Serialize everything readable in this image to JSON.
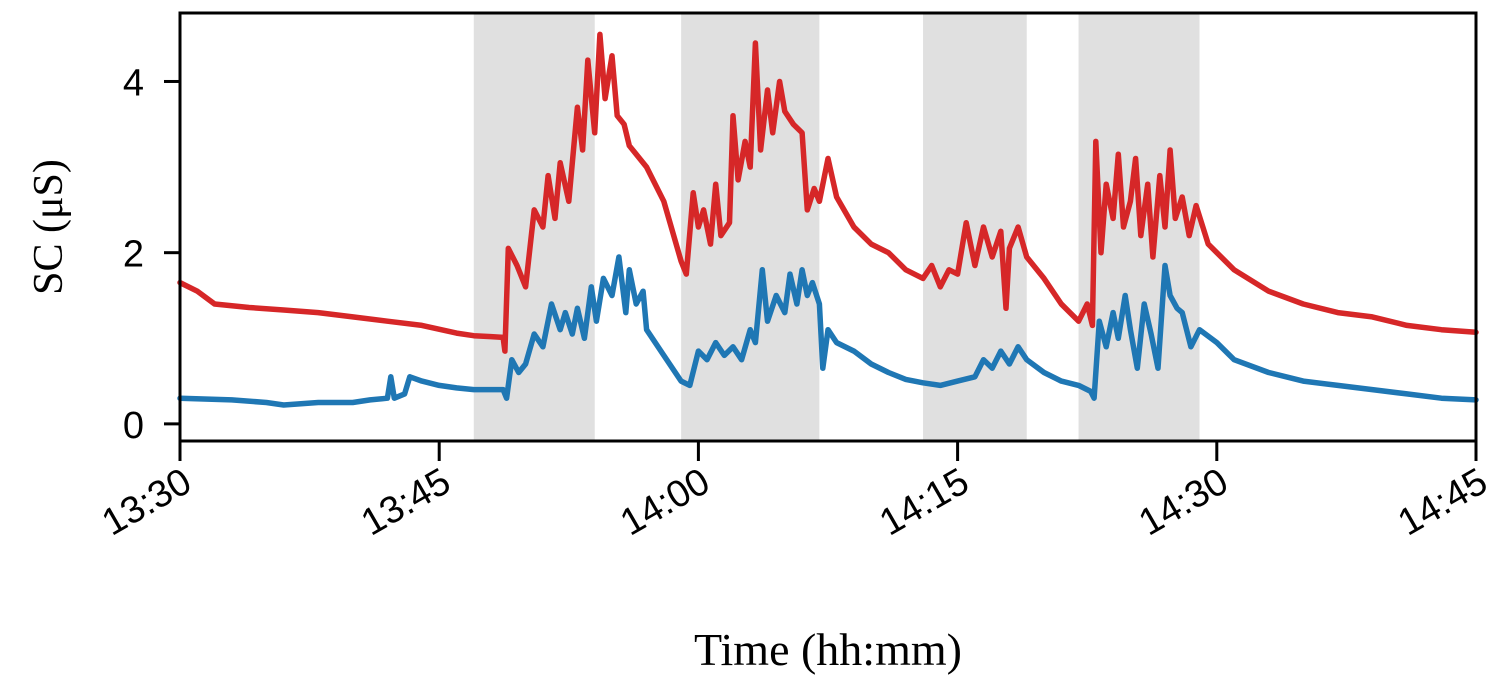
{
  "chart_data": {
    "type": "line",
    "xlabel": "Time (hh:mm)",
    "ylabel": "SC (μS)",
    "x_unit": "time of day (hh:mm)",
    "xlim": [
      "13:30",
      "14:45"
    ],
    "ylim": [
      -0.2,
      4.8
    ],
    "x_ticks": [
      "13:30",
      "13:45",
      "14:00",
      "14:15",
      "14:30",
      "14:45"
    ],
    "y_ticks": [
      0,
      2,
      4
    ],
    "grid": false,
    "legend": "none",
    "shaded_intervals": [
      {
        "start": "13:47",
        "end": "13:54"
      },
      {
        "start": "13:59",
        "end": "14:07"
      },
      {
        "start": "14:13",
        "end": "14:19"
      },
      {
        "start": "14:22",
        "end": "14:29"
      }
    ],
    "shade_color": "#e0e0e0",
    "series": [
      {
        "color": "#d62728",
        "points": [
          [
            "13:30",
            1.65
          ],
          [
            "13:31",
            1.55
          ],
          [
            "13:32",
            1.4
          ],
          [
            "13:34",
            1.36
          ],
          [
            "13:36",
            1.33
          ],
          [
            "13:38",
            1.3
          ],
          [
            "13:40",
            1.25
          ],
          [
            "13:42",
            1.2
          ],
          [
            "13:44",
            1.15
          ],
          [
            "13:46",
            1.06
          ],
          [
            "13:47",
            1.03
          ],
          [
            "13:48",
            1.02
          ],
          [
            "13:48.7",
            1.01
          ],
          [
            "13:48.8",
            0.85
          ],
          [
            "13:49",
            2.05
          ],
          [
            "13:49.5",
            1.85
          ],
          [
            "13:50",
            1.6
          ],
          [
            "13:50.5",
            2.5
          ],
          [
            "13:51",
            2.3
          ],
          [
            "13:51.3",
            2.9
          ],
          [
            "13:51.7",
            2.4
          ],
          [
            "13:52",
            3.05
          ],
          [
            "13:52.5",
            2.6
          ],
          [
            "13:53",
            3.7
          ],
          [
            "13:53.3",
            3.2
          ],
          [
            "13:53.6",
            4.25
          ],
          [
            "13:54",
            3.4
          ],
          [
            "13:54.3",
            4.55
          ],
          [
            "13:54.6",
            3.8
          ],
          [
            "13:55",
            4.3
          ],
          [
            "13:55.3",
            3.6
          ],
          [
            "13:55.7",
            3.5
          ],
          [
            "13:56",
            3.25
          ],
          [
            "13:57",
            3.0
          ],
          [
            "13:58",
            2.6
          ],
          [
            "13:59",
            1.9
          ],
          [
            "13:59.3",
            1.75
          ],
          [
            "13:59.7",
            2.7
          ],
          [
            "14:00",
            2.3
          ],
          [
            "14:00.3",
            2.5
          ],
          [
            "14:00.7",
            2.1
          ],
          [
            "14:01",
            2.8
          ],
          [
            "14:01.3",
            2.2
          ],
          [
            "14:01.8",
            2.35
          ],
          [
            "14:02",
            3.6
          ],
          [
            "14:02.3",
            2.85
          ],
          [
            "14:02.7",
            3.3
          ],
          [
            "14:03",
            3.0
          ],
          [
            "14:03.3",
            4.45
          ],
          [
            "14:03.6",
            3.2
          ],
          [
            "14:04",
            3.9
          ],
          [
            "14:04.3",
            3.4
          ],
          [
            "14:04.7",
            4.0
          ],
          [
            "14:05",
            3.65
          ],
          [
            "14:05.5",
            3.5
          ],
          [
            "14:06",
            3.4
          ],
          [
            "14:06.3",
            2.5
          ],
          [
            "14:06.7",
            2.75
          ],
          [
            "14:07",
            2.6
          ],
          [
            "14:07.5",
            3.1
          ],
          [
            "14:08",
            2.65
          ],
          [
            "14:09",
            2.3
          ],
          [
            "14:10",
            2.1
          ],
          [
            "14:11",
            2.0
          ],
          [
            "14:12",
            1.8
          ],
          [
            "14:13",
            1.7
          ],
          [
            "14:13.5",
            1.85
          ],
          [
            "14:14",
            1.6
          ],
          [
            "14:14.5",
            1.8
          ],
          [
            "14:15",
            1.75
          ],
          [
            "14:15.5",
            2.35
          ],
          [
            "14:16",
            1.85
          ],
          [
            "14:16.5",
            2.3
          ],
          [
            "14:17",
            1.95
          ],
          [
            "14:17.5",
            2.25
          ],
          [
            "14:17.8",
            1.35
          ],
          [
            "14:18",
            2.05
          ],
          [
            "14:18.5",
            2.3
          ],
          [
            "14:19",
            1.95
          ],
          [
            "14:20",
            1.7
          ],
          [
            "14:21",
            1.4
          ],
          [
            "14:22",
            1.2
          ],
          [
            "14:22.5",
            1.4
          ],
          [
            "14:22.8",
            1.15
          ],
          [
            "14:23",
            3.3
          ],
          [
            "14:23.3",
            2.0
          ],
          [
            "14:23.6",
            2.8
          ],
          [
            "14:24",
            2.4
          ],
          [
            "14:24.3",
            3.15
          ],
          [
            "14:24.6",
            2.3
          ],
          [
            "14:25",
            2.6
          ],
          [
            "14:25.3",
            3.1
          ],
          [
            "14:25.6",
            2.2
          ],
          [
            "14:26",
            2.8
          ],
          [
            "14:26.3",
            1.95
          ],
          [
            "14:26.7",
            2.9
          ],
          [
            "14:27",
            2.3
          ],
          [
            "14:27.3",
            3.2
          ],
          [
            "14:27.6",
            2.4
          ],
          [
            "14:28",
            2.65
          ],
          [
            "14:28.4",
            2.2
          ],
          [
            "14:28.8",
            2.55
          ],
          [
            "14:29.5",
            2.1
          ],
          [
            "14:31",
            1.8
          ],
          [
            "14:33",
            1.55
          ],
          [
            "14:35",
            1.4
          ],
          [
            "14:37",
            1.3
          ],
          [
            "14:39",
            1.25
          ],
          [
            "14:41",
            1.15
          ],
          [
            "14:43",
            1.1
          ],
          [
            "14:45",
            1.07
          ]
        ]
      },
      {
        "color": "#1f77b4",
        "points": [
          [
            "13:30",
            0.3
          ],
          [
            "13:33",
            0.28
          ],
          [
            "13:35",
            0.25
          ],
          [
            "13:36",
            0.22
          ],
          [
            "13:38",
            0.25
          ],
          [
            "13:40",
            0.25
          ],
          [
            "13:41",
            0.28
          ],
          [
            "13:42",
            0.3
          ],
          [
            "13:42.2",
            0.55
          ],
          [
            "13:42.4",
            0.3
          ],
          [
            "13:43",
            0.35
          ],
          [
            "13:43.3",
            0.55
          ],
          [
            "13:44",
            0.5
          ],
          [
            "13:45",
            0.45
          ],
          [
            "13:46",
            0.42
          ],
          [
            "13:47",
            0.4
          ],
          [
            "13:48",
            0.4
          ],
          [
            "13:48.7",
            0.4
          ],
          [
            "13:48.9",
            0.3
          ],
          [
            "13:49.2",
            0.75
          ],
          [
            "13:49.6",
            0.6
          ],
          [
            "13:50",
            0.7
          ],
          [
            "13:50.5",
            1.05
          ],
          [
            "13:51",
            0.9
          ],
          [
            "13:51.5",
            1.4
          ],
          [
            "13:52",
            1.1
          ],
          [
            "13:52.3",
            1.3
          ],
          [
            "13:52.7",
            1.05
          ],
          [
            "13:53",
            1.35
          ],
          [
            "13:53.4",
            1.0
          ],
          [
            "13:53.8",
            1.6
          ],
          [
            "13:54.1",
            1.2
          ],
          [
            "13:54.5",
            1.7
          ],
          [
            "13:55",
            1.5
          ],
          [
            "13:55.4",
            1.95
          ],
          [
            "13:55.8",
            1.3
          ],
          [
            "13:56",
            1.8
          ],
          [
            "13:56.4",
            1.4
          ],
          [
            "13:56.8",
            1.55
          ],
          [
            "13:57",
            1.1
          ],
          [
            "13:58",
            0.8
          ],
          [
            "13:59",
            0.5
          ],
          [
            "13:59.5",
            0.45
          ],
          [
            "14:00",
            0.85
          ],
          [
            "14:00.5",
            0.75
          ],
          [
            "14:01",
            0.95
          ],
          [
            "14:01.5",
            0.8
          ],
          [
            "14:02",
            0.9
          ],
          [
            "14:02.5",
            0.75
          ],
          [
            "14:03",
            1.1
          ],
          [
            "14:03.3",
            0.95
          ],
          [
            "14:03.7",
            1.8
          ],
          [
            "14:04",
            1.2
          ],
          [
            "14:04.5",
            1.5
          ],
          [
            "14:05",
            1.3
          ],
          [
            "14:05.3",
            1.75
          ],
          [
            "14:05.7",
            1.4
          ],
          [
            "14:06",
            1.8
          ],
          [
            "14:06.3",
            1.5
          ],
          [
            "14:06.6",
            1.65
          ],
          [
            "14:07",
            1.4
          ],
          [
            "14:07.2",
            0.65
          ],
          [
            "14:07.5",
            1.1
          ],
          [
            "14:08",
            0.95
          ],
          [
            "14:09",
            0.85
          ],
          [
            "14:10",
            0.7
          ],
          [
            "14:11",
            0.6
          ],
          [
            "14:12",
            0.52
          ],
          [
            "14:13",
            0.48
          ],
          [
            "14:14",
            0.45
          ],
          [
            "14:15",
            0.5
          ],
          [
            "14:16",
            0.55
          ],
          [
            "14:16.5",
            0.75
          ],
          [
            "14:17",
            0.65
          ],
          [
            "14:17.5",
            0.85
          ],
          [
            "14:18",
            0.7
          ],
          [
            "14:18.5",
            0.9
          ],
          [
            "14:19",
            0.75
          ],
          [
            "14:20",
            0.6
          ],
          [
            "14:21",
            0.5
          ],
          [
            "14:22",
            0.45
          ],
          [
            "14:22.7",
            0.38
          ],
          [
            "14:22.9",
            0.3
          ],
          [
            "14:23.2",
            1.2
          ],
          [
            "14:23.6",
            0.9
          ],
          [
            "14:24",
            1.3
          ],
          [
            "14:24.3",
            1.0
          ],
          [
            "14:24.7",
            1.5
          ],
          [
            "14:25",
            1.1
          ],
          [
            "14:25.4",
            0.65
          ],
          [
            "14:25.8",
            1.4
          ],
          [
            "14:26.2",
            1.05
          ],
          [
            "14:26.6",
            0.65
          ],
          [
            "14:27",
            1.85
          ],
          [
            "14:27.3",
            1.5
          ],
          [
            "14:27.7",
            1.35
          ],
          [
            "14:28",
            1.3
          ],
          [
            "14:28.5",
            0.9
          ],
          [
            "14:29",
            1.1
          ],
          [
            "14:30",
            0.95
          ],
          [
            "14:31",
            0.75
          ],
          [
            "14:33",
            0.6
          ],
          [
            "14:35",
            0.5
          ],
          [
            "14:37",
            0.45
          ],
          [
            "14:39",
            0.4
          ],
          [
            "14:41",
            0.35
          ],
          [
            "14:43",
            0.3
          ],
          [
            "14:45",
            0.28
          ]
        ]
      }
    ]
  }
}
